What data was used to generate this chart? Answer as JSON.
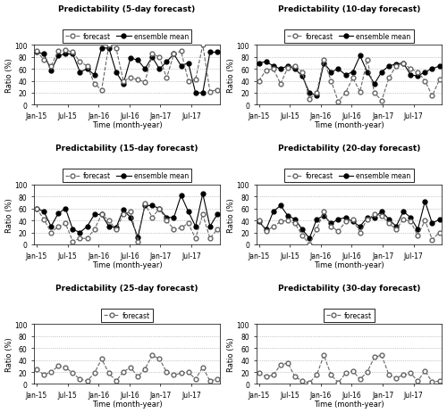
{
  "titles": [
    "Predictability (5-day forecast)",
    "Predictability (10-day forecast)",
    "Predictability (15-day forecast)",
    "Predictability (20-day forecast)",
    "Predictability (25-day forecast)",
    "Predictability (30-day forecast)"
  ],
  "has_ensemble": [
    true,
    true,
    true,
    true,
    false,
    false
  ],
  "xtick_labels": [
    "Jan-15",
    "Jul-15",
    "Jan-16",
    "Jul-16",
    "Jan-17",
    "Jul-17"
  ],
  "xtick_pos": [
    0,
    6,
    12,
    18,
    24,
    30
  ],
  "ylabel": "Ratio (%)",
  "xlabel": "Time (month-year)",
  "ylim": [
    0,
    100
  ],
  "yticks": [
    0,
    20,
    40,
    60,
    80,
    100
  ],
  "gridlines": [
    20,
    40,
    60,
    80
  ],
  "xlim": [
    -0.5,
    35.5
  ],
  "forecast_5": [
    90,
    75,
    65,
    90,
    92,
    88,
    72,
    65,
    35,
    25,
    100,
    95,
    40,
    45,
    42,
    38,
    85,
    80,
    45,
    85,
    90,
    40,
    42,
    100,
    22,
    25
  ],
  "ensemble_5": [
    88,
    85,
    58,
    82,
    85,
    85,
    55,
    60,
    50,
    95,
    95,
    55,
    35,
    78,
    75,
    60,
    80,
    60,
    72,
    85,
    65,
    70,
    20,
    20,
    88,
    88
  ],
  "forecast_10": [
    40,
    58,
    60,
    35,
    62,
    65,
    55,
    10,
    20,
    75,
    40,
    5,
    20,
    45,
    22,
    75,
    20,
    7,
    45,
    65,
    70,
    60,
    55,
    40,
    15,
    42
  ],
  "ensemble_10": [
    70,
    72,
    65,
    60,
    65,
    60,
    48,
    20,
    15,
    70,
    55,
    60,
    50,
    55,
    82,
    55,
    35,
    55,
    65,
    68,
    70,
    50,
    48,
    55,
    60,
    65
  ],
  "forecast_15": [
    60,
    42,
    20,
    30,
    35,
    5,
    10,
    10,
    25,
    50,
    40,
    25,
    50,
    55,
    5,
    68,
    45,
    60,
    40,
    25,
    28,
    35,
    10,
    50,
    10,
    25
  ],
  "ensemble_15": [
    60,
    55,
    30,
    52,
    60,
    25,
    20,
    30,
    50,
    50,
    30,
    28,
    58,
    45,
    12,
    65,
    65,
    60,
    45,
    45,
    82,
    55,
    30,
    85,
    30,
    50
  ],
  "forecast_20": [
    40,
    22,
    30,
    38,
    40,
    35,
    15,
    0,
    25,
    55,
    30,
    22,
    38,
    42,
    20,
    42,
    50,
    48,
    35,
    25,
    42,
    38,
    15,
    40,
    8,
    20
  ],
  "ensemble_20": [
    38,
    25,
    55,
    65,
    48,
    42,
    25,
    10,
    42,
    48,
    35,
    42,
    45,
    38,
    30,
    45,
    45,
    55,
    42,
    30,
    55,
    45,
    25,
    72,
    35,
    42
  ],
  "forecast_25": [
    25,
    15,
    20,
    30,
    28,
    18,
    8,
    5,
    18,
    42,
    18,
    5,
    20,
    28,
    12,
    25,
    48,
    42,
    20,
    15,
    18,
    20,
    8,
    28,
    5,
    8
  ],
  "forecast_30": [
    18,
    12,
    15,
    32,
    35,
    12,
    5,
    2,
    15,
    48,
    15,
    2,
    18,
    22,
    8,
    20,
    45,
    48,
    15,
    10,
    15,
    18,
    5,
    22,
    3,
    5
  ],
  "forecast_color": "#666666",
  "ensemble_color": "#000000",
  "bg_color": "#ffffff",
  "grid_color": "#999999",
  "legend_forecast_label": "forecast",
  "legend_ensemble_label": "ensemble mean"
}
